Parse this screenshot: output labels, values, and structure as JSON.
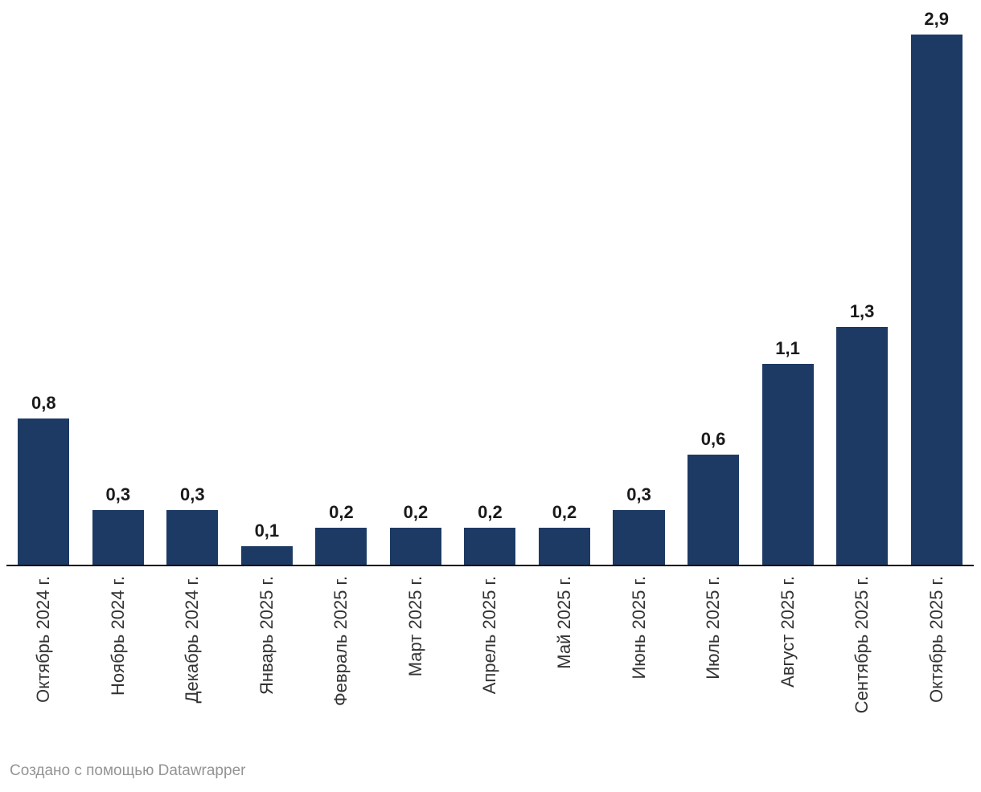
{
  "chart_data": {
    "type": "bar",
    "categories": [
      "Октябрь 2024 г.",
      "Ноябрь 2024 г.",
      "Декабрь 2024 г.",
      "Январь 2025 г.",
      "Февраль 2025 г.",
      "Март 2025 г.",
      "Апрель 2025 г.",
      "Май 2025 г.",
      "Июнь 2025 г.",
      "Июль 2025 г.",
      "Август 2025 г.",
      "Сентябрь 2025 г.",
      "Октябрь 2025 г."
    ],
    "values": [
      0.8,
      0.3,
      0.3,
      0.1,
      0.2,
      0.2,
      0.2,
      0.2,
      0.3,
      0.6,
      1.1,
      1.3,
      2.9
    ],
    "value_labels": [
      "0,8",
      "0,3",
      "0,3",
      "0,1",
      "0,2",
      "0,2",
      "0,2",
      "0,2",
      "0,3",
      "0,6",
      "1,1",
      "1,3",
      "2,9"
    ],
    "title": "",
    "xlabel": "",
    "ylabel": "",
    "ylim": [
      0,
      2.9
    ],
    "grid": false,
    "legend": "none",
    "bar_color": "#1d3a64",
    "value_label_color": "#1a1a1a",
    "axis_label_color": "#333333",
    "axis_line_color": "#141414"
  },
  "footer": {
    "attribution": "Создано с помощью Datawrapper",
    "color": "#949494"
  }
}
